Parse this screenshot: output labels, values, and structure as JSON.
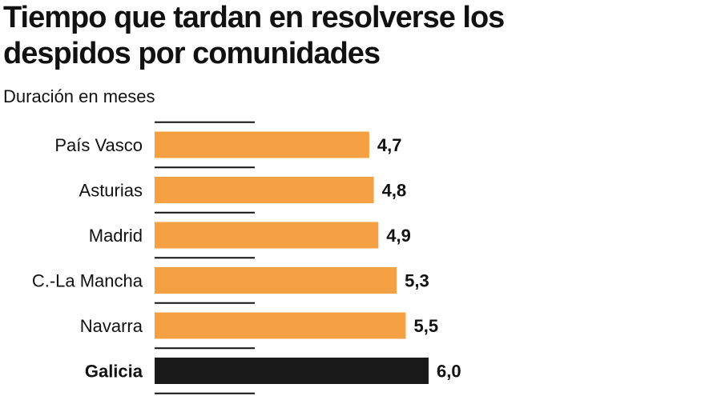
{
  "header": {
    "title": "Tiempo que tardan en resolverse los despidos por comunidades",
    "subtitle": "Duración en meses"
  },
  "colors": {
    "default_bar": "#f4a043",
    "highlight_bar": "#1a1a1a",
    "separator": "#111111"
  },
  "chart_data": {
    "type": "bar",
    "orientation": "horizontal",
    "title": "Tiempo que tardan en resolverse los despidos por comunidades",
    "subtitle": "Duración en meses",
    "categories": [
      "País Vasco",
      "Asturias",
      "Madrid",
      "C.-La Mancha",
      "Navarra",
      "Galicia"
    ],
    "values": [
      4.7,
      4.8,
      4.9,
      5.3,
      5.5,
      6.0
    ],
    "value_labels": [
      "4,7",
      "4,8",
      "4,9",
      "5,3",
      "5,5",
      "6,0"
    ],
    "highlight": [
      "Galicia"
    ],
    "xlim": [
      0,
      6.0
    ],
    "grid": false,
    "legend": "none"
  }
}
